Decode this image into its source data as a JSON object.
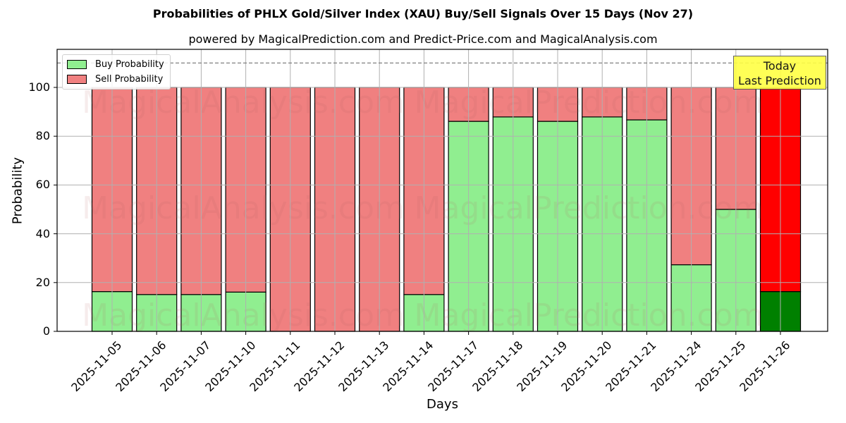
{
  "header": {
    "title": "Probabilities of PHLX Gold/Silver Index (XAU) Buy/Sell Signals Over 15 Days (Nov 27)",
    "subtitle": "powered by MagicalPrediction.com and Predict-Price.com and MagicalAnalysis.com"
  },
  "legend": {
    "buy_label": "Buy Probability",
    "sell_label": "Sell Probability"
  },
  "annotation": {
    "line1": "Today",
    "line2": "Last Prediction"
  },
  "watermarks": [
    "MagicalAnalysis.com",
    "MagicalPrediction.com"
  ],
  "colors": {
    "buy": "#90ee90",
    "sell": "#f08080",
    "today_buy": "#008000",
    "today_sell": "#ff0000",
    "annotation_bg": "#ffff44"
  },
  "chart_data": {
    "type": "bar",
    "stacked": true,
    "title": "Probabilities of PHLX Gold/Silver Index (XAU) Buy/Sell Signals Over 15 Days (Nov 27)",
    "subtitle": "powered by MagicalPrediction.com and Predict-Price.com and MagicalAnalysis.com",
    "xlabel": "Days",
    "ylabel": "Probability",
    "ylim": [
      0,
      115
    ],
    "yticks": [
      0,
      20,
      40,
      60,
      80,
      100
    ],
    "grid": true,
    "legend_position": "upper left",
    "reference_line": {
      "y": 110,
      "style": "dashed"
    },
    "categories": [
      "2025-11-05",
      "2025-11-06",
      "2025-11-07",
      "2025-11-10",
      "2025-11-11",
      "2025-11-12",
      "2025-11-13",
      "2025-11-14",
      "2025-11-17",
      "2025-11-18",
      "2025-11-19",
      "2025-11-20",
      "2025-11-21",
      "2025-11-24",
      "2025-11-25",
      "2025-11-26"
    ],
    "series": [
      {
        "name": "Buy Probability",
        "values": [
          16.3,
          15.1,
          15.1,
          16.1,
          0,
          0,
          0,
          15.1,
          86.1,
          87.9,
          86.1,
          87.9,
          86.7,
          27.3,
          50.0,
          16.3
        ]
      },
      {
        "name": "Sell Probability",
        "values": [
          83.7,
          84.9,
          84.9,
          83.9,
          100,
          100,
          100,
          84.9,
          13.9,
          12.1,
          13.9,
          12.1,
          13.3,
          72.7,
          50.0,
          83.7
        ]
      }
    ],
    "highlight": {
      "category": "2025-11-26",
      "label": "Today Last Prediction"
    }
  }
}
